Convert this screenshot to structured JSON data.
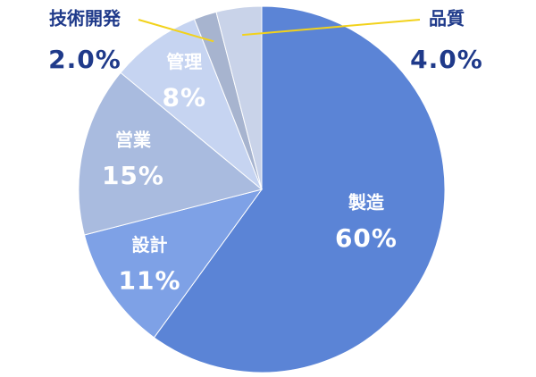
{
  "chart_data": {
    "type": "pie",
    "categories": [
      "製造",
      "設計",
      "営業",
      "管理",
      "技術開発",
      "品質"
    ],
    "values": [
      60,
      11,
      15,
      8,
      2.0,
      4.0
    ],
    "value_labels": [
      "60%",
      "11%",
      "15%",
      "8%",
      "2.0%",
      "4.0%"
    ],
    "colors": [
      "#5b84d6",
      "#7ea1e6",
      "#a9bbdf",
      "#c6d4f1",
      "#a7b4cf",
      "#c9d3e9"
    ]
  }
}
